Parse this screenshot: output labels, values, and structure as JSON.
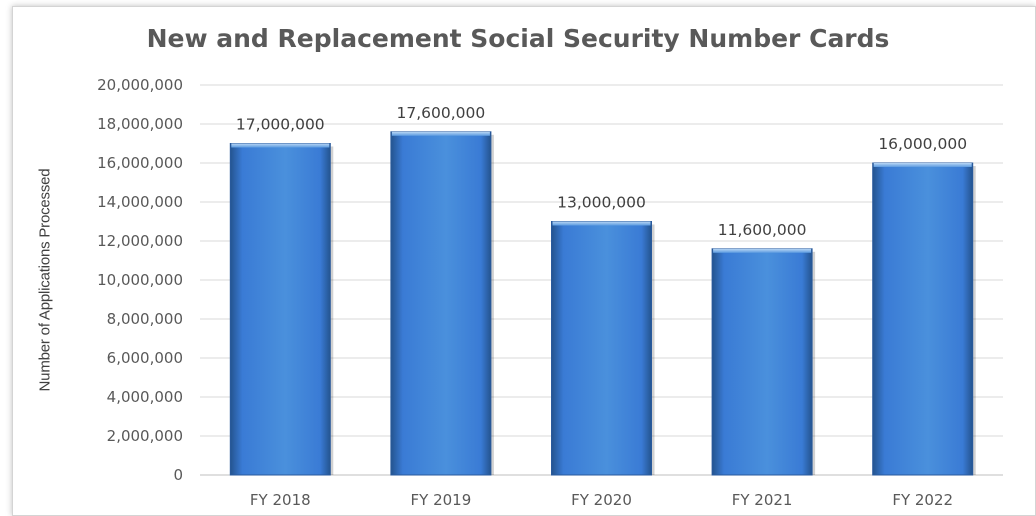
{
  "chart_data": {
    "type": "bar",
    "title": "New and Replacement Social Security Number Cards",
    "xlabel": "",
    "ylabel": "Number of Applications Processed",
    "categories": [
      "FY 2018",
      "FY 2019",
      "FY 2020",
      "FY 2021",
      "FY 2022"
    ],
    "values": [
      17000000,
      17600000,
      13000000,
      11600000,
      16000000
    ],
    "data_labels": [
      "17,000,000",
      "17,600,000",
      "13,000,000",
      "11,600,000",
      "16,000,000"
    ],
    "ylim": [
      0,
      20000000
    ],
    "y_ticks": [
      0,
      2000000,
      4000000,
      6000000,
      8000000,
      10000000,
      12000000,
      14000000,
      16000000,
      18000000,
      20000000
    ],
    "y_tick_labels": [
      "0",
      "2,000,000",
      "4,000,000",
      "6,000,000",
      "8,000,000",
      "10,000,000",
      "12,000,000",
      "14,000,000",
      "16,000,000",
      "18,000,000",
      "20,000,000"
    ],
    "grid": true,
    "legend": "none",
    "colors": {
      "bar_light": "#4a90dc",
      "bar_mid": "#3a7bd5",
      "bar_dark": "#2a5a9c",
      "bar_top": "#9cc4f0",
      "gridline": "#d9d9d9"
    }
  }
}
